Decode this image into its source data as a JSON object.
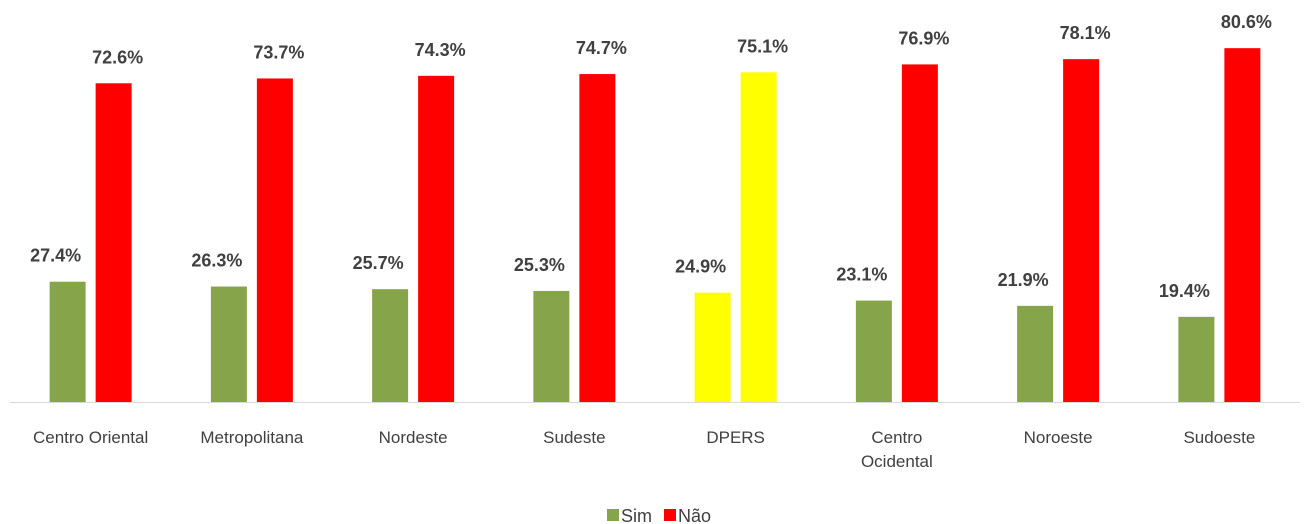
{
  "chart_data": {
    "type": "bar",
    "categories": [
      "Centro Oriental",
      "Metropolitana",
      "Nordeste",
      "Sudeste",
      "DPERS",
      "Centro\nOcidental",
      "Noroeste",
      "Sudoeste"
    ],
    "series": [
      {
        "name": "Sim",
        "color": "#86a44a",
        "colors": [
          "#86a44a",
          "#86a44a",
          "#86a44a",
          "#86a44a",
          "#ffff00",
          "#86a44a",
          "#86a44a",
          "#86a44a"
        ],
        "values": [
          27.4,
          26.3,
          25.7,
          25.3,
          24.9,
          23.1,
          21.9,
          19.4
        ],
        "value_labels": [
          "27.4%",
          "26.3%",
          "25.7%",
          "25.3%",
          "24.9%",
          "23.1%",
          "21.9%",
          "19.4%"
        ]
      },
      {
        "name": "Não",
        "color": "#ff0000",
        "colors": [
          "#ff0000",
          "#ff0000",
          "#ff0000",
          "#ff0000",
          "#ffff00",
          "#ff0000",
          "#ff0000",
          "#ff0000"
        ],
        "values": [
          72.6,
          73.7,
          74.3,
          74.7,
          75.1,
          76.9,
          78.1,
          80.6
        ],
        "value_labels": [
          "72.6%",
          "73.7%",
          "74.3%",
          "74.7%",
          "75.1%",
          "76.9%",
          "78.1%",
          "80.6%"
        ]
      }
    ],
    "legend": "bottom"
  }
}
